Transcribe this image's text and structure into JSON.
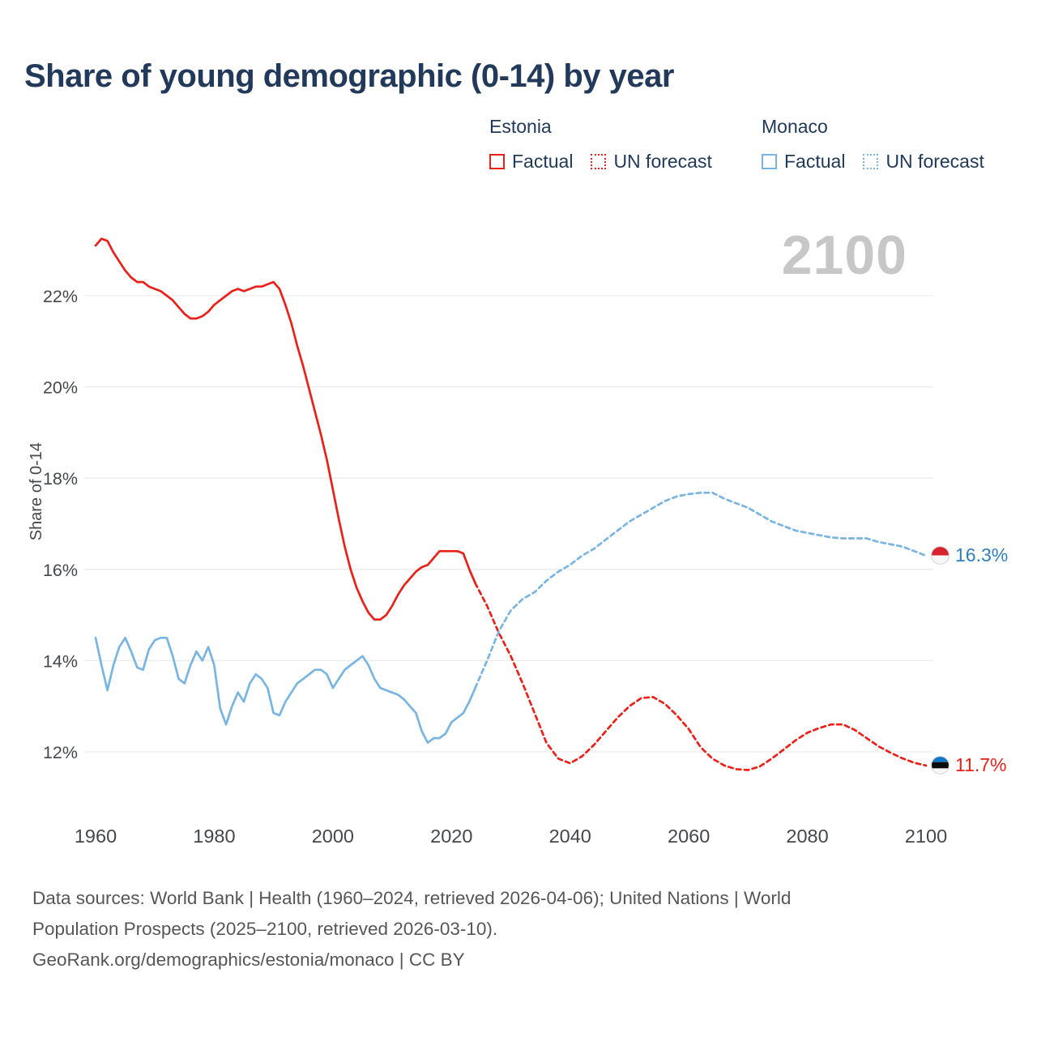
{
  "legend": {
    "groups": [
      {
        "title": "Estonia",
        "items": [
          {
            "label": "Factual",
            "style": "solid",
            "color": "#ec2019"
          },
          {
            "label": "UN forecast",
            "style": "dashed",
            "color": "#ec2019"
          }
        ]
      },
      {
        "title": "Monaco",
        "items": [
          {
            "label": "Factual",
            "style": "solid",
            "color": "#79b5e3"
          },
          {
            "label": "UN forecast",
            "style": "dashed",
            "color": "#79b5e3"
          }
        ]
      }
    ]
  },
  "chart_data": {
    "type": "line",
    "title": "Share of young demographic (0-14) by year",
    "xlabel": "",
    "ylabel": "Share of 0-14",
    "watermark": "2100",
    "x_ticks": [
      1960,
      1980,
      2000,
      2020,
      2040,
      2060,
      2080,
      2100
    ],
    "y_ticks": [
      12,
      14,
      16,
      18,
      20,
      22
    ],
    "y_tick_suffix": "%",
    "xlim": [
      1960,
      2100
    ],
    "ylim": [
      11,
      23.6
    ],
    "grid": "horizontal",
    "legend_position": "top-right",
    "series": [
      {
        "name": "Estonia Factual",
        "color": "#ec2019",
        "style": "solid",
        "points": [
          [
            1960,
            23.1
          ],
          [
            1961,
            23.25
          ],
          [
            1962,
            23.2
          ],
          [
            1963,
            22.95
          ],
          [
            1964,
            22.75
          ],
          [
            1965,
            22.55
          ],
          [
            1966,
            22.4
          ],
          [
            1967,
            22.3
          ],
          [
            1968,
            22.3
          ],
          [
            1969,
            22.2
          ],
          [
            1970,
            22.15
          ],
          [
            1971,
            22.1
          ],
          [
            1972,
            22.0
          ],
          [
            1973,
            21.9
          ],
          [
            1974,
            21.75
          ],
          [
            1975,
            21.6
          ],
          [
            1976,
            21.5
          ],
          [
            1977,
            21.5
          ],
          [
            1978,
            21.55
          ],
          [
            1979,
            21.65
          ],
          [
            1980,
            21.8
          ],
          [
            1981,
            21.9
          ],
          [
            1982,
            22.0
          ],
          [
            1983,
            22.1
          ],
          [
            1984,
            22.15
          ],
          [
            1985,
            22.1
          ],
          [
            1986,
            22.15
          ],
          [
            1987,
            22.2
          ],
          [
            1988,
            22.2
          ],
          [
            1989,
            22.25
          ],
          [
            1990,
            22.3
          ],
          [
            1991,
            22.15
          ],
          [
            1992,
            21.8
          ],
          [
            1993,
            21.4
          ],
          [
            1994,
            20.9
          ],
          [
            1995,
            20.45
          ],
          [
            1996,
            19.95
          ],
          [
            1997,
            19.45
          ],
          [
            1998,
            18.95
          ],
          [
            1999,
            18.4
          ],
          [
            2000,
            17.75
          ],
          [
            2001,
            17.1
          ],
          [
            2002,
            16.5
          ],
          [
            2003,
            16.0
          ],
          [
            2004,
            15.6
          ],
          [
            2005,
            15.3
          ],
          [
            2006,
            15.05
          ],
          [
            2007,
            14.9
          ],
          [
            2008,
            14.9
          ],
          [
            2009,
            15.0
          ],
          [
            2010,
            15.2
          ],
          [
            2011,
            15.45
          ],
          [
            2012,
            15.65
          ],
          [
            2013,
            15.8
          ],
          [
            2014,
            15.95
          ],
          [
            2015,
            16.05
          ],
          [
            2016,
            16.1
          ],
          [
            2017,
            16.25
          ],
          [
            2018,
            16.4
          ],
          [
            2019,
            16.4
          ],
          [
            2020,
            16.4
          ],
          [
            2021,
            16.4
          ],
          [
            2022,
            16.35
          ],
          [
            2023,
            16.0
          ],
          [
            2024,
            15.7
          ]
        ]
      },
      {
        "name": "Estonia UN forecast",
        "color": "#ec2019",
        "style": "dashed",
        "points": [
          [
            2024,
            15.7
          ],
          [
            2026,
            15.2
          ],
          [
            2028,
            14.6
          ],
          [
            2030,
            14.1
          ],
          [
            2032,
            13.5
          ],
          [
            2034,
            12.85
          ],
          [
            2036,
            12.2
          ],
          [
            2038,
            11.85
          ],
          [
            2040,
            11.75
          ],
          [
            2042,
            11.9
          ],
          [
            2044,
            12.15
          ],
          [
            2046,
            12.45
          ],
          [
            2048,
            12.75
          ],
          [
            2050,
            13.0
          ],
          [
            2052,
            13.18
          ],
          [
            2054,
            13.2
          ],
          [
            2056,
            13.05
          ],
          [
            2058,
            12.8
          ],
          [
            2060,
            12.5
          ],
          [
            2062,
            12.1
          ],
          [
            2064,
            11.85
          ],
          [
            2066,
            11.7
          ],
          [
            2068,
            11.62
          ],
          [
            2070,
            11.6
          ],
          [
            2072,
            11.68
          ],
          [
            2074,
            11.85
          ],
          [
            2076,
            12.05
          ],
          [
            2078,
            12.25
          ],
          [
            2080,
            12.42
          ],
          [
            2082,
            12.52
          ],
          [
            2084,
            12.6
          ],
          [
            2086,
            12.6
          ],
          [
            2088,
            12.48
          ],
          [
            2090,
            12.3
          ],
          [
            2092,
            12.12
          ],
          [
            2094,
            11.98
          ],
          [
            2096,
            11.86
          ],
          [
            2098,
            11.76
          ],
          [
            2100,
            11.7
          ]
        ]
      },
      {
        "name": "Monaco Factual",
        "color": "#79b5e3",
        "style": "solid",
        "points": [
          [
            1960,
            14.5
          ],
          [
            1961,
            13.9
          ],
          [
            1962,
            13.35
          ],
          [
            1963,
            13.9
          ],
          [
            1964,
            14.3
          ],
          [
            1965,
            14.5
          ],
          [
            1966,
            14.2
          ],
          [
            1967,
            13.85
          ],
          [
            1968,
            13.8
          ],
          [
            1969,
            14.25
          ],
          [
            1970,
            14.45
          ],
          [
            1971,
            14.5
          ],
          [
            1972,
            14.5
          ],
          [
            1973,
            14.1
          ],
          [
            1974,
            13.6
          ],
          [
            1975,
            13.5
          ],
          [
            1976,
            13.9
          ],
          [
            1977,
            14.2
          ],
          [
            1978,
            14.0
          ],
          [
            1979,
            14.3
          ],
          [
            1980,
            13.9
          ],
          [
            1981,
            12.95
          ],
          [
            1982,
            12.6
          ],
          [
            1983,
            13.0
          ],
          [
            1984,
            13.3
          ],
          [
            1985,
            13.1
          ],
          [
            1986,
            13.5
          ],
          [
            1987,
            13.7
          ],
          [
            1988,
            13.6
          ],
          [
            1989,
            13.4
          ],
          [
            1990,
            12.85
          ],
          [
            1991,
            12.8
          ],
          [
            1992,
            13.1
          ],
          [
            1993,
            13.3
          ],
          [
            1994,
            13.5
          ],
          [
            1995,
            13.6
          ],
          [
            1996,
            13.7
          ],
          [
            1997,
            13.8
          ],
          [
            1998,
            13.8
          ],
          [
            1999,
            13.7
          ],
          [
            2000,
            13.4
          ],
          [
            2001,
            13.6
          ],
          [
            2002,
            13.8
          ],
          [
            2003,
            13.9
          ],
          [
            2004,
            14.0
          ],
          [
            2005,
            14.1
          ],
          [
            2006,
            13.9
          ],
          [
            2007,
            13.6
          ],
          [
            2008,
            13.4
          ],
          [
            2009,
            13.35
          ],
          [
            2010,
            13.3
          ],
          [
            2011,
            13.25
          ],
          [
            2012,
            13.15
          ],
          [
            2013,
            13.0
          ],
          [
            2014,
            12.85
          ],
          [
            2015,
            12.45
          ],
          [
            2016,
            12.2
          ],
          [
            2017,
            12.3
          ],
          [
            2018,
            12.3
          ],
          [
            2019,
            12.4
          ],
          [
            2020,
            12.65
          ],
          [
            2021,
            12.75
          ],
          [
            2022,
            12.85
          ],
          [
            2023,
            13.1
          ],
          [
            2024,
            13.4
          ]
        ]
      },
      {
        "name": "Monaco UN forecast",
        "color": "#79b5e3",
        "style": "dashed",
        "points": [
          [
            2024,
            13.4
          ],
          [
            2026,
            14.0
          ],
          [
            2028,
            14.65
          ],
          [
            2030,
            15.1
          ],
          [
            2032,
            15.35
          ],
          [
            2034,
            15.5
          ],
          [
            2036,
            15.75
          ],
          [
            2038,
            15.95
          ],
          [
            2040,
            16.1
          ],
          [
            2042,
            16.3
          ],
          [
            2044,
            16.45
          ],
          [
            2046,
            16.65
          ],
          [
            2048,
            16.85
          ],
          [
            2050,
            17.05
          ],
          [
            2052,
            17.2
          ],
          [
            2054,
            17.35
          ],
          [
            2056,
            17.5
          ],
          [
            2058,
            17.6
          ],
          [
            2060,
            17.65
          ],
          [
            2062,
            17.68
          ],
          [
            2064,
            17.68
          ],
          [
            2066,
            17.55
          ],
          [
            2068,
            17.45
          ],
          [
            2070,
            17.35
          ],
          [
            2072,
            17.2
          ],
          [
            2074,
            17.05
          ],
          [
            2076,
            16.95
          ],
          [
            2078,
            16.85
          ],
          [
            2080,
            16.8
          ],
          [
            2082,
            16.75
          ],
          [
            2084,
            16.7
          ],
          [
            2086,
            16.68
          ],
          [
            2088,
            16.68
          ],
          [
            2090,
            16.68
          ],
          [
            2092,
            16.6
          ],
          [
            2094,
            16.55
          ],
          [
            2096,
            16.5
          ],
          [
            2098,
            16.4
          ],
          [
            2100,
            16.3
          ]
        ]
      }
    ],
    "end_labels": [
      {
        "series": "Monaco",
        "flag": "monaco",
        "value": "16.3%",
        "y": 16.3,
        "color": "#2f7fc1"
      },
      {
        "series": "Estonia",
        "flag": "estonia",
        "value": "11.7%",
        "y": 11.7,
        "color": "#ec2019"
      }
    ]
  },
  "footer": {
    "line1": "Data sources: World Bank | Health (1960–2024, retrieved 2026-04-06); United Nations | World",
    "line2": "Population Prospects (2025–2100, retrieved 2026-03-10).",
    "line3": "GeoRank.org/demographics/estonia/monaco | CC BY"
  }
}
